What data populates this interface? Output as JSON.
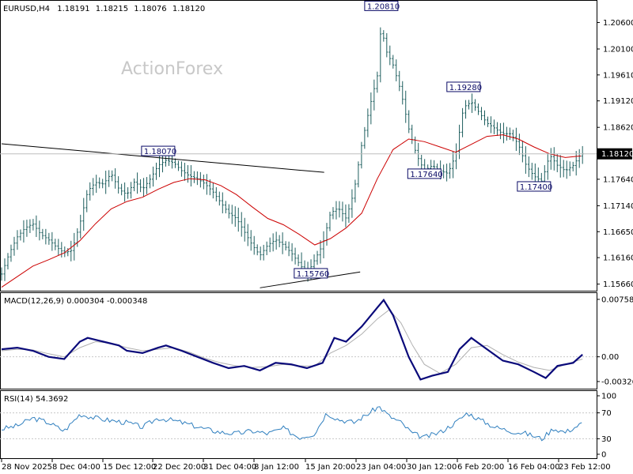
{
  "header": {
    "symbol": "EURUSD,H4",
    "open": "1.18191",
    "high": "1.18215",
    "low": "1.18076",
    "close": "1.18120"
  },
  "watermark": "ActionForex",
  "colors": {
    "candle": "#1f5f5f",
    "ma": "#cc0000",
    "macd": "#0a0a7a",
    "signal": "#b0b0b0",
    "rsi": "#2f7fbf",
    "trendline": "#000000",
    "grid": "#c8c8c8",
    "label_border": "#0a0a66"
  },
  "chart_data": [
    {
      "type": "line",
      "name": "price",
      "title": "EURUSD,H4",
      "ylim": [
        1.1555,
        1.2098
      ],
      "yticks": [
        "1.20600",
        "1.20100",
        "1.19610",
        "1.19120",
        "1.18620",
        "1.17640",
        "1.17140",
        "1.16650",
        "1.16160",
        "1.15660"
      ],
      "current_price": "1.18120",
      "x_labels": [
        "28 Nov 2025",
        "8 Dec 04:00",
        "15 Dec 12:00",
        "22 Dec 20:00",
        "31 Dec 04:00",
        "8 Jan 12:00",
        "15 Jan 20:00",
        "23 Jan 04:00",
        "30 Jan 12:00",
        "6 Feb 20:00",
        "16 Feb 04:00",
        "23 Feb 12:00"
      ],
      "close_path": [
        [
          0,
          1.1585
        ],
        [
          10,
          1.1625
        ],
        [
          20,
          1.1655
        ],
        [
          30,
          1.1672
        ],
        [
          40,
          1.168
        ],
        [
          50,
          1.166
        ],
        [
          60,
          1.165
        ],
        [
          70,
          1.1636
        ],
        [
          80,
          1.1625
        ],
        [
          90,
          1.163
        ],
        [
          100,
          1.168
        ],
        [
          110,
          1.1742
        ],
        [
          120,
          1.1758
        ],
        [
          130,
          1.1755
        ],
        [
          140,
          1.1775
        ],
        [
          150,
          1.1745
        ],
        [
          160,
          1.1735
        ],
        [
          170,
          1.176
        ],
        [
          180,
          1.1745
        ],
        [
          190,
          1.1765
        ],
        [
          200,
          1.179
        ],
        [
          210,
          1.18
        ],
        [
          220,
          1.1795
        ],
        [
          230,
          1.178
        ],
        [
          240,
          1.177
        ],
        [
          250,
          1.1765
        ],
        [
          260,
          1.1755
        ],
        [
          270,
          1.174
        ],
        [
          280,
          1.172
        ],
        [
          290,
          1.17
        ],
        [
          300,
          1.169
        ],
        [
          310,
          1.1665
        ],
        [
          320,
          1.164
        ],
        [
          330,
          1.162
        ],
        [
          340,
          1.164
        ],
        [
          350,
          1.165
        ],
        [
          360,
          1.164
        ],
        [
          370,
          1.1625
        ],
        [
          380,
          1.1605
        ],
        [
          390,
          1.1585
        ],
        [
          400,
          1.1612
        ],
        [
          410,
          1.164
        ],
        [
          420,
          1.17
        ],
        [
          430,
          1.171
        ],
        [
          440,
          1.169
        ],
        [
          450,
          1.174
        ],
        [
          460,
          1.183
        ],
        [
          470,
          1.19
        ],
        [
          480,
          1.196
        ],
        [
          485,
          1.206
        ],
        [
          490,
          1.201
        ],
        [
          500,
          1.198
        ],
        [
          510,
          1.193
        ],
        [
          520,
          1.186
        ],
        [
          530,
          1.181
        ],
        [
          540,
          1.178
        ],
        [
          550,
          1.179
        ],
        [
          560,
          1.178
        ],
        [
          570,
          1.1775
        ],
        [
          580,
          1.181
        ],
        [
          590,
          1.19
        ],
        [
          600,
          1.191
        ],
        [
          610,
          1.189
        ],
        [
          620,
          1.187
        ],
        [
          630,
          1.186
        ],
        [
          640,
          1.185
        ],
        [
          650,
          1.185
        ],
        [
          660,
          1.183
        ],
        [
          670,
          1.179
        ],
        [
          680,
          1.177
        ],
        [
          690,
          1.176
        ],
        [
          700,
          1.181
        ],
        [
          710,
          1.179
        ],
        [
          720,
          1.178
        ],
        [
          730,
          1.179
        ],
        [
          740,
          1.1812
        ]
      ],
      "ma_path": [
        [
          0,
          1.156
        ],
        [
          20,
          1.158
        ],
        [
          40,
          1.16
        ],
        [
          60,
          1.1612
        ],
        [
          80,
          1.1625
        ],
        [
          100,
          1.1648
        ],
        [
          120,
          1.168
        ],
        [
          140,
          1.1708
        ],
        [
          160,
          1.1722
        ],
        [
          180,
          1.173
        ],
        [
          200,
          1.1745
        ],
        [
          220,
          1.1758
        ],
        [
          240,
          1.1765
        ],
        [
          260,
          1.1763
        ],
        [
          280,
          1.1752
        ],
        [
          300,
          1.1735
        ],
        [
          320,
          1.1712
        ],
        [
          340,
          1.169
        ],
        [
          360,
          1.1678
        ],
        [
          380,
          1.166
        ],
        [
          400,
          1.164
        ],
        [
          420,
          1.1652
        ],
        [
          440,
          1.1672
        ],
        [
          460,
          1.17
        ],
        [
          480,
          1.1765
        ],
        [
          500,
          1.182
        ],
        [
          520,
          1.184
        ],
        [
          540,
          1.1835
        ],
        [
          560,
          1.1825
        ],
        [
          580,
          1.1815
        ],
        [
          600,
          1.183
        ],
        [
          620,
          1.1845
        ],
        [
          640,
          1.1848
        ],
        [
          660,
          1.184
        ],
        [
          680,
          1.1825
        ],
        [
          700,
          1.1812
        ],
        [
          720,
          1.1805
        ],
        [
          740,
          1.1808
        ]
      ],
      "annotations": [
        {
          "text": "1.20810",
          "x": 485,
          "y": 1.2081
        },
        {
          "text": "1.19280",
          "x": 590,
          "y": 1.1928
        },
        {
          "text": "1.18070",
          "x": 200,
          "y": 1.1807
        },
        {
          "text": "1.17640",
          "x": 540,
          "y": 1.1764
        },
        {
          "text": "1.17400",
          "x": 680,
          "y": 1.174
        },
        {
          "text": "1.15760",
          "x": 395,
          "y": 1.1576
        }
      ],
      "trendlines": [
        {
          "from": [
            0,
            1.1831
          ],
          "to": [
            412,
            1.1777
          ]
        },
        {
          "from": [
            330,
            1.1559
          ],
          "to": [
            458,
            1.1589
          ]
        }
      ]
    },
    {
      "type": "line",
      "name": "MACD",
      "title": "MACD(12,26,9) 0.000304 -0.000348",
      "ylim": [
        -0.004,
        0.0081
      ],
      "yticks": [
        "0.007585",
        "0.00",
        "-0.003264"
      ],
      "macd_path": [
        [
          0,
          0.001
        ],
        [
          20,
          0.0012
        ],
        [
          40,
          0.0008
        ],
        [
          60,
          0.0
        ],
        [
          80,
          -0.0003
        ],
        [
          100,
          0.002
        ],
        [
          110,
          0.0025
        ],
        [
          130,
          0.002
        ],
        [
          150,
          0.0015
        ],
        [
          160,
          0.0008
        ],
        [
          180,
          0.0005
        ],
        [
          200,
          0.0012
        ],
        [
          210,
          0.0015
        ],
        [
          230,
          0.0008
        ],
        [
          250,
          0.0
        ],
        [
          270,
          -0.0008
        ],
        [
          290,
          -0.0015
        ],
        [
          310,
          -0.0012
        ],
        [
          330,
          -0.0018
        ],
        [
          350,
          -0.0008
        ],
        [
          370,
          -0.001
        ],
        [
          390,
          -0.0015
        ],
        [
          410,
          -0.0008
        ],
        [
          425,
          0.0025
        ],
        [
          440,
          0.002
        ],
        [
          460,
          0.004
        ],
        [
          480,
          0.0065
        ],
        [
          488,
          0.0075
        ],
        [
          500,
          0.0055
        ],
        [
          520,
          0.0
        ],
        [
          535,
          -0.003
        ],
        [
          550,
          -0.0025
        ],
        [
          570,
          -0.002
        ],
        [
          585,
          0.001
        ],
        [
          600,
          0.0025
        ],
        [
          620,
          0.001
        ],
        [
          640,
          -0.0005
        ],
        [
          660,
          -0.001
        ],
        [
          680,
          -0.002
        ],
        [
          695,
          -0.0028
        ],
        [
          710,
          -0.0012
        ],
        [
          730,
          -0.0008
        ],
        [
          742,
          0.0003
        ]
      ],
      "signal_path": [
        [
          0,
          0.0008
        ],
        [
          20,
          0.001
        ],
        [
          40,
          0.0009
        ],
        [
          60,
          0.0004
        ],
        [
          80,
          0.0
        ],
        [
          100,
          0.0012
        ],
        [
          120,
          0.002
        ],
        [
          140,
          0.0018
        ],
        [
          160,
          0.0012
        ],
        [
          180,
          0.0008
        ],
        [
          200,
          0.001
        ],
        [
          220,
          0.0012
        ],
        [
          240,
          0.0006
        ],
        [
          260,
          -0.0002
        ],
        [
          280,
          -0.0008
        ],
        [
          300,
          -0.0012
        ],
        [
          320,
          -0.0014
        ],
        [
          340,
          -0.0013
        ],
        [
          360,
          -0.001
        ],
        [
          380,
          -0.0012
        ],
        [
          400,
          -0.0012
        ],
        [
          420,
          0.0005
        ],
        [
          440,
          0.0015
        ],
        [
          460,
          0.003
        ],
        [
          480,
          0.005
        ],
        [
          495,
          0.0062
        ],
        [
          510,
          0.0045
        ],
        [
          525,
          0.0015
        ],
        [
          540,
          -0.001
        ],
        [
          560,
          -0.0022
        ],
        [
          580,
          -0.001
        ],
        [
          600,
          0.0012
        ],
        [
          620,
          0.0015
        ],
        [
          640,
          0.0003
        ],
        [
          660,
          -0.0007
        ],
        [
          680,
          -0.0014
        ],
        [
          700,
          -0.0018
        ],
        [
          720,
          -0.001
        ],
        [
          742,
          -0.0003
        ]
      ]
    },
    {
      "type": "line",
      "name": "RSI",
      "title": "RSI(14) 54.3692",
      "ylim": [
        0,
        100
      ],
      "yticks": [
        "100",
        "70",
        "30",
        "0"
      ],
      "levels": [
        70,
        30
      ],
      "rsi_path": [
        [
          0,
          45
        ],
        [
          20,
          50
        ],
        [
          40,
          62
        ],
        [
          60,
          55
        ],
        [
          80,
          42
        ],
        [
          100,
          68
        ],
        [
          120,
          62
        ],
        [
          140,
          58
        ],
        [
          160,
          55
        ],
        [
          180,
          48
        ],
        [
          200,
          62
        ],
        [
          220,
          58
        ],
        [
          240,
          52
        ],
        [
          260,
          45
        ],
        [
          280,
          40
        ],
        [
          300,
          38
        ],
        [
          320,
          42
        ],
        [
          340,
          38
        ],
        [
          360,
          46
        ],
        [
          380,
          32
        ],
        [
          400,
          38
        ],
        [
          415,
          70
        ],
        [
          430,
          60
        ],
        [
          450,
          55
        ],
        [
          470,
          70
        ],
        [
          482,
          80
        ],
        [
          495,
          65
        ],
        [
          510,
          55
        ],
        [
          525,
          38
        ],
        [
          540,
          32
        ],
        [
          560,
          40
        ],
        [
          580,
          55
        ],
        [
          595,
          70
        ],
        [
          610,
          60
        ],
        [
          630,
          48
        ],
        [
          650,
          42
        ],
        [
          670,
          38
        ],
        [
          690,
          30
        ],
        [
          705,
          46
        ],
        [
          720,
          40
        ],
        [
          742,
          54
        ]
      ]
    }
  ]
}
